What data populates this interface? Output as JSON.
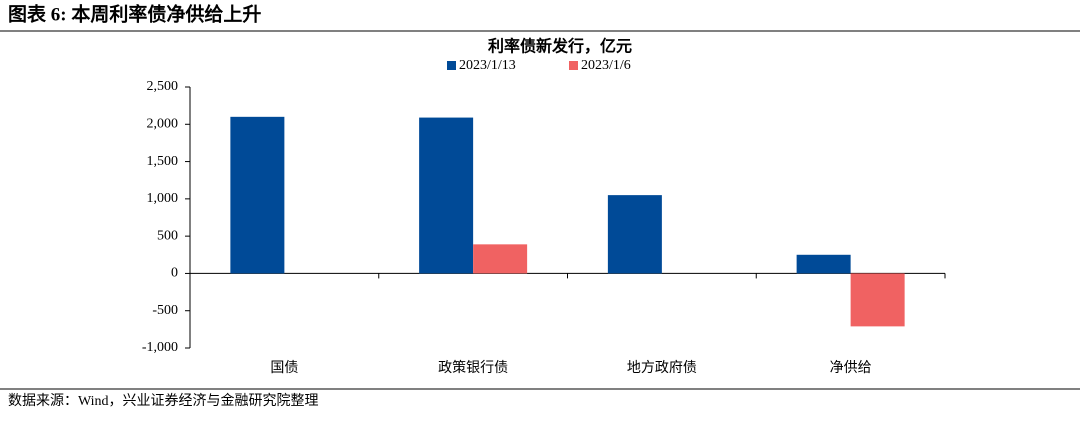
{
  "header": {
    "title": "图表 6:  本周利率债净供给上升"
  },
  "chart_data": {
    "type": "bar",
    "title": "利率债新发行，亿元",
    "categories": [
      "国债",
      "政策银行债",
      "地方政府债",
      "净供给"
    ],
    "series": [
      {
        "name": "2023/1/13",
        "color": "#004a97",
        "values": [
          2100,
          2090,
          1050,
          250
        ]
      },
      {
        "name": "2023/1/6",
        "color": "#f06262",
        "values": [
          0,
          390,
          0,
          -710
        ]
      }
    ],
    "ylim": [
      -1000,
      2500
    ],
    "yticks": [
      {
        "value": -1000,
        "label": "-1,000"
      },
      -500,
      0,
      500,
      {
        "value": 1000,
        "label": "1,000"
      },
      {
        "value": 1500,
        "label": "1,500"
      },
      {
        "value": 2000,
        "label": "2,000"
      },
      {
        "value": 2500,
        "label": "2,500"
      }
    ],
    "grid": false,
    "legend": "top"
  },
  "footer": {
    "source": "数据来源：Wind，兴业证券经济与金融研究院整理"
  }
}
